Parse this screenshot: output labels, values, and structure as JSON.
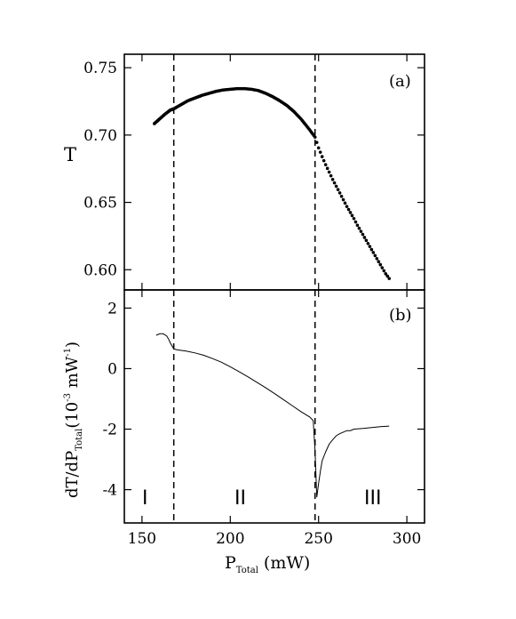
{
  "chart_data": [
    {
      "panel": "(a)",
      "type": "scatter",
      "ylabel": "T",
      "xlim": [
        140,
        310
      ],
      "ylim": [
        0.585,
        0.76
      ],
      "yticks": [
        "0.60",
        "0.65",
        "0.70",
        "0.75"
      ],
      "xticks": [
        "150",
        "200",
        "250",
        "300"
      ],
      "vlines": [
        168,
        248
      ],
      "series": [
        {
          "x": [
            157,
            160,
            163,
            166,
            168,
            172,
            176,
            180,
            184,
            188,
            192,
            196,
            200,
            204,
            208,
            212,
            216,
            220,
            224,
            228,
            232,
            236,
            240,
            244,
            248,
            250,
            252,
            254,
            256,
            258,
            260,
            262,
            264,
            266,
            268,
            270,
            272,
            274,
            276,
            278,
            280,
            282,
            284,
            286,
            288,
            290
          ],
          "y": [
            0.7085,
            0.712,
            0.7155,
            0.7185,
            0.7195,
            0.7225,
            0.7255,
            0.7275,
            0.7295,
            0.731,
            0.7325,
            0.7335,
            0.734,
            0.7345,
            0.7345,
            0.734,
            0.733,
            0.731,
            0.7285,
            0.7255,
            0.722,
            0.7175,
            0.712,
            0.7055,
            0.6985,
            0.6905,
            0.684,
            0.678,
            0.6725,
            0.667,
            0.662,
            0.657,
            0.652,
            0.647,
            0.6425,
            0.638,
            0.633,
            0.6285,
            0.624,
            0.6195,
            0.615,
            0.6105,
            0.606,
            0.6015,
            0.597,
            0.5935
          ]
        }
      ]
    },
    {
      "panel": "(b)",
      "type": "line",
      "ylabel": "dT/dP",
      "ylabel_sub": "Total",
      "ylabel_rest": "(10",
      "ylabel_sup": "-3",
      "ylabel_unit": " mW",
      "ylabel_unit_sup": "-1",
      "ylabel_close": ")",
      "xlabel": "P",
      "xlabel_sub": "Total",
      "xlabel_unit": " (mW)",
      "xlim": [
        140,
        310
      ],
      "ylim": [
        -5.1,
        2.6
      ],
      "yticks": [
        "-4",
        "-2",
        "0",
        "2"
      ],
      "xticks": [
        "150",
        "200",
        "250",
        "300"
      ],
      "vlines": [
        168,
        248
      ],
      "series": [
        {
          "x": [
            158,
            160,
            162,
            164,
            165,
            166,
            167,
            168,
            170,
            175,
            180,
            185,
            190,
            195,
            200,
            205,
            210,
            215,
            220,
            225,
            230,
            235,
            240,
            245,
            247,
            248,
            249,
            250,
            251,
            252,
            254,
            256,
            258,
            260,
            262,
            264,
            266,
            268,
            270,
            275,
            280,
            285,
            290
          ],
          "y": [
            1.1,
            1.15,
            1.15,
            1.08,
            0.98,
            0.85,
            0.75,
            0.65,
            0.62,
            0.58,
            0.52,
            0.44,
            0.33,
            0.21,
            0.06,
            -0.1,
            -0.27,
            -0.45,
            -0.63,
            -0.82,
            -1.02,
            -1.22,
            -1.42,
            -1.6,
            -1.72,
            -2.7,
            -4.25,
            -3.8,
            -3.4,
            -3.05,
            -2.75,
            -2.5,
            -2.35,
            -2.22,
            -2.15,
            -2.1,
            -2.05,
            -2.05,
            -2.0,
            -1.98,
            -1.95,
            -1.92,
            -1.9
          ]
        }
      ],
      "annotations": [
        "I",
        "II",
        "III"
      ]
    }
  ]
}
